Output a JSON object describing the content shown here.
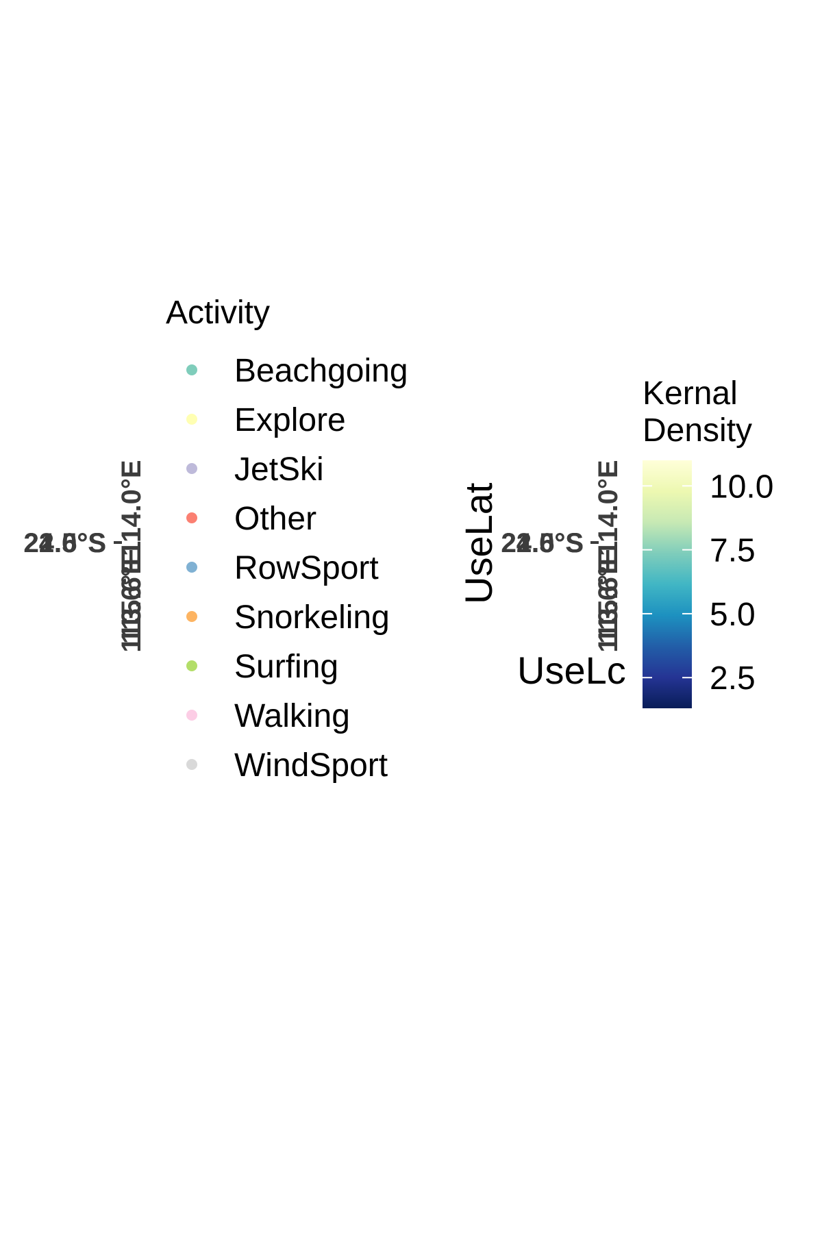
{
  "chart_data": [
    {
      "type": "scatter",
      "panel": "left",
      "title": "",
      "xlabel": "",
      "ylabel": "",
      "lat_tick_labels": [
        "22.6°S",
        "21.5°S",
        "24.0°S"
      ],
      "lon_tick_labels": [
        "113.6°E",
        "114.0°E",
        "115.6°E"
      ],
      "legend": {
        "title": "Activity",
        "position": "right",
        "items": [
          {
            "label": "Beachgoing",
            "color": "#7fcdbb"
          },
          {
            "label": "Explore",
            "color": "#ffffb3"
          },
          {
            "label": "JetSki",
            "color": "#bebada"
          },
          {
            "label": "Other",
            "color": "#fb8072"
          },
          {
            "label": "RowSport",
            "color": "#80b1d3"
          },
          {
            "label": "Snorkeling",
            "color": "#fdb462"
          },
          {
            "label": "Surfing",
            "color": "#b3de69"
          },
          {
            "label": "Walking",
            "color": "#fccde5"
          },
          {
            "label": "WindSport",
            "color": "#d9d9d9"
          }
        ]
      },
      "points": []
    },
    {
      "type": "heatmap",
      "panel": "right",
      "title": "",
      "xlabel": "UseLc",
      "ylabel": "UseLat",
      "lat_tick_labels": [
        "22.6°S",
        "21.5°S",
        "24.0°S"
      ],
      "lon_tick_labels": [
        "113.6°E",
        "114.0°E",
        "115.6°E"
      ],
      "colorbar": {
        "title_lines": [
          "Kernal",
          "Density"
        ],
        "ticks": [
          {
            "label": "10.0",
            "value": 10.0
          },
          {
            "label": "7.5",
            "value": 7.5
          },
          {
            "label": "5.0",
            "value": 5.0
          },
          {
            "label": "2.5",
            "value": 2.5
          }
        ],
        "range": [
          1.3,
          11.0
        ],
        "colors": [
          "#081d58",
          "#253494",
          "#225ea8",
          "#1d91c0",
          "#41b6c4",
          "#7fcdbb",
          "#c7e9b4",
          "#edf8b1",
          "#ffffd9"
        ]
      }
    }
  ]
}
